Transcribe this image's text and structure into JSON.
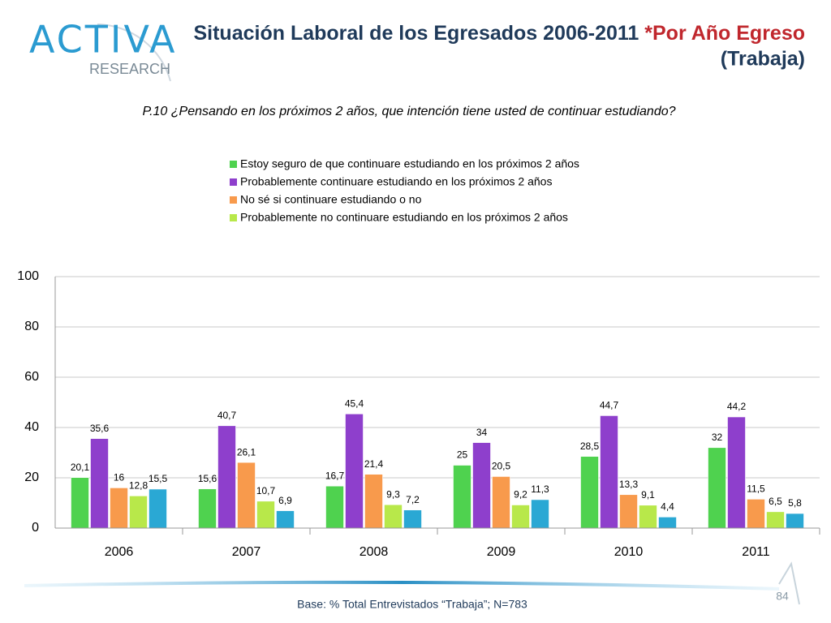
{
  "logo": {
    "brand": "ACTIVA",
    "sub": "RESEARCH"
  },
  "chart_data": {
    "type": "bar",
    "title": "Situación Laboral de los Egresados 2006-2011 ",
    "title_highlight": "*Por Año Egreso",
    "title_line2": "(Trabaja)",
    "subtitle": "P.10 ¿Pensando en los próximos 2 años, que intención tiene usted de continuar estudiando?",
    "categories": [
      "2006",
      "2007",
      "2008",
      "2009",
      "2010",
      "2011"
    ],
    "series": [
      {
        "name": "Estoy seguro de que continuare estudiando en los próximos 2 años",
        "color": "#4fd24f",
        "values": [
          20.1,
          15.6,
          16.7,
          25,
          28.5,
          32
        ],
        "value_labels": [
          "20,1",
          "15,6",
          "16,7",
          "25",
          "28,5",
          "32"
        ]
      },
      {
        "name": "Probablemente continuare estudiando en los próximos 2 años",
        "color": "#8e3fcc",
        "values": [
          35.6,
          40.7,
          45.4,
          34,
          44.7,
          44.2
        ],
        "value_labels": [
          "35,6",
          "40,7",
          "45,4",
          "34",
          "44,7",
          "44,2"
        ]
      },
      {
        "name": "No sé si continuare estudiando o no",
        "color": "#f89a4c",
        "values": [
          16,
          26.1,
          21.4,
          20.5,
          13.3,
          11.5
        ],
        "value_labels": [
          "16",
          "26,1",
          "21,4",
          "20,5",
          "13,3",
          "11,5"
        ]
      },
      {
        "name": "Probablemente no continuare estudiando en los próximos 2 años",
        "color": "#b8e84a",
        "values": [
          12.8,
          10.7,
          9.3,
          9.2,
          9.1,
          6.5
        ],
        "value_labels": [
          "12,8",
          "10,7",
          "9,3",
          "9,2",
          "9,1",
          "6,5"
        ]
      },
      {
        "color": "#2aa8d4",
        "values": [
          15.5,
          6.9,
          7.2,
          11.3,
          4.4,
          5.8
        ],
        "value_labels": [
          "15,5",
          "6,9",
          "7,2",
          "11,3",
          "4,4",
          "5,8"
        ]
      }
    ],
    "ylim": [
      0,
      100
    ],
    "yticks": [
      0,
      20,
      40,
      60,
      80,
      100
    ],
    "grid": true
  },
  "footer": {
    "note": "Base: % Total Entrevistados “Trabaja”; N=783",
    "page": "84"
  }
}
